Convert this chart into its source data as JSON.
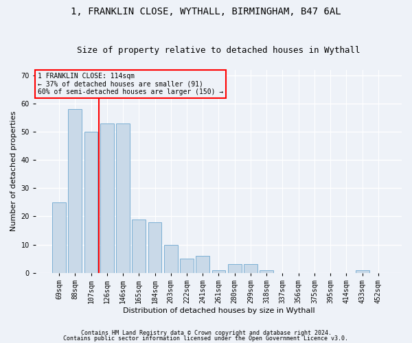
{
  "title1": "1, FRANKLIN CLOSE, WYTHALL, BIRMINGHAM, B47 6AL",
  "title2": "Size of property relative to detached houses in Wythall",
  "xlabel": "Distribution of detached houses by size in Wythall",
  "ylabel": "Number of detached properties",
  "categories": [
    "69sqm",
    "88sqm",
    "107sqm",
    "126sqm",
    "146sqm",
    "165sqm",
    "184sqm",
    "203sqm",
    "222sqm",
    "241sqm",
    "261sqm",
    "280sqm",
    "299sqm",
    "318sqm",
    "337sqm",
    "356sqm",
    "375sqm",
    "395sqm",
    "414sqm",
    "433sqm",
    "452sqm"
  ],
  "values": [
    25,
    58,
    50,
    53,
    53,
    19,
    18,
    10,
    5,
    6,
    1,
    3,
    3,
    1,
    0,
    0,
    0,
    0,
    0,
    1,
    0
  ],
  "bar_color": "#c9d9e8",
  "bar_edge_color": "#7bafd4",
  "vline_x": 2.5,
  "vline_color": "red",
  "ylim": [
    0,
    72
  ],
  "yticks": [
    0,
    10,
    20,
    30,
    40,
    50,
    60,
    70
  ],
  "annotation_text": "1 FRANKLIN CLOSE: 114sqm\n← 37% of detached houses are smaller (91)\n60% of semi-detached houses are larger (150) →",
  "footer1": "Contains HM Land Registry data © Crown copyright and database right 2024.",
  "footer2": "Contains public sector information licensed under the Open Government Licence v3.0.",
  "bg_color": "#eef2f8",
  "grid_color": "#ffffff",
  "title1_fontsize": 10,
  "title2_fontsize": 9,
  "axis_label_fontsize": 8,
  "tick_fontsize": 7,
  "footer_fontsize": 6
}
